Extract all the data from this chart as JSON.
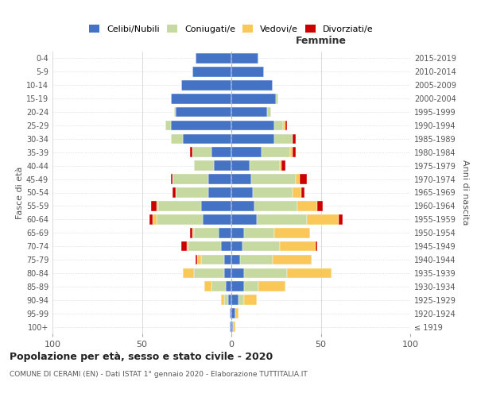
{
  "age_groups": [
    "100+",
    "95-99",
    "90-94",
    "85-89",
    "80-84",
    "75-79",
    "70-74",
    "65-69",
    "60-64",
    "55-59",
    "50-54",
    "45-49",
    "40-44",
    "35-39",
    "30-34",
    "25-29",
    "20-24",
    "15-19",
    "10-14",
    "5-9",
    "0-4"
  ],
  "birth_years": [
    "≤ 1919",
    "1920-1924",
    "1925-1929",
    "1930-1934",
    "1935-1939",
    "1940-1944",
    "1945-1949",
    "1950-1954",
    "1955-1959",
    "1960-1964",
    "1965-1969",
    "1970-1974",
    "1975-1979",
    "1980-1984",
    "1985-1989",
    "1990-1994",
    "1995-1999",
    "2000-2004",
    "2005-2009",
    "2010-2014",
    "2015-2019"
  ],
  "male_celibi": [
    1,
    1,
    2,
    3,
    4,
    4,
    6,
    7,
    16,
    17,
    13,
    13,
    10,
    11,
    27,
    34,
    31,
    34,
    28,
    22,
    20
  ],
  "male_coniugati": [
    0,
    0,
    2,
    8,
    17,
    13,
    18,
    14,
    26,
    24,
    18,
    20,
    11,
    11,
    7,
    3,
    1,
    0,
    0,
    0,
    0
  ],
  "male_vedovi": [
    0,
    0,
    2,
    4,
    6,
    2,
    1,
    1,
    2,
    1,
    0,
    0,
    0,
    0,
    0,
    0,
    0,
    0,
    0,
    0,
    0
  ],
  "male_divorziati": [
    0,
    0,
    0,
    0,
    0,
    1,
    3,
    1,
    2,
    3,
    2,
    1,
    0,
    1,
    0,
    0,
    0,
    0,
    0,
    0,
    0
  ],
  "female_celibi": [
    1,
    2,
    4,
    7,
    7,
    5,
    6,
    7,
    14,
    13,
    12,
    11,
    10,
    17,
    24,
    24,
    20,
    25,
    23,
    18,
    15
  ],
  "female_coniugati": [
    0,
    0,
    3,
    8,
    24,
    18,
    21,
    17,
    28,
    24,
    22,
    25,
    17,
    16,
    10,
    5,
    2,
    1,
    0,
    0,
    0
  ],
  "female_vedovi": [
    1,
    2,
    7,
    15,
    25,
    22,
    20,
    20,
    18,
    11,
    5,
    2,
    1,
    1,
    0,
    1,
    0,
    0,
    0,
    0,
    0
  ],
  "female_divorziati": [
    0,
    0,
    0,
    0,
    0,
    0,
    1,
    0,
    2,
    3,
    2,
    4,
    2,
    2,
    2,
    1,
    0,
    0,
    0,
    0,
    0
  ],
  "color_celibi": "#4472c4",
  "color_coniugati": "#c5d9a0",
  "color_vedovi": "#fac858",
  "color_divorziati": "#cc0000",
  "title": "Popolazione per età, sesso e stato civile - 2020",
  "subtitle": "COMUNE DI CERAMI (EN) - Dati ISTAT 1° gennaio 2020 - Elaborazione TUTTITALIA.IT",
  "xlabel_right": "Femmine",
  "ylabel_left": "Fasce di età",
  "ylabel_right": "Anni di nascita",
  "xlim": 100,
  "bg_color": "#ffffff",
  "grid_color": "#cccccc"
}
